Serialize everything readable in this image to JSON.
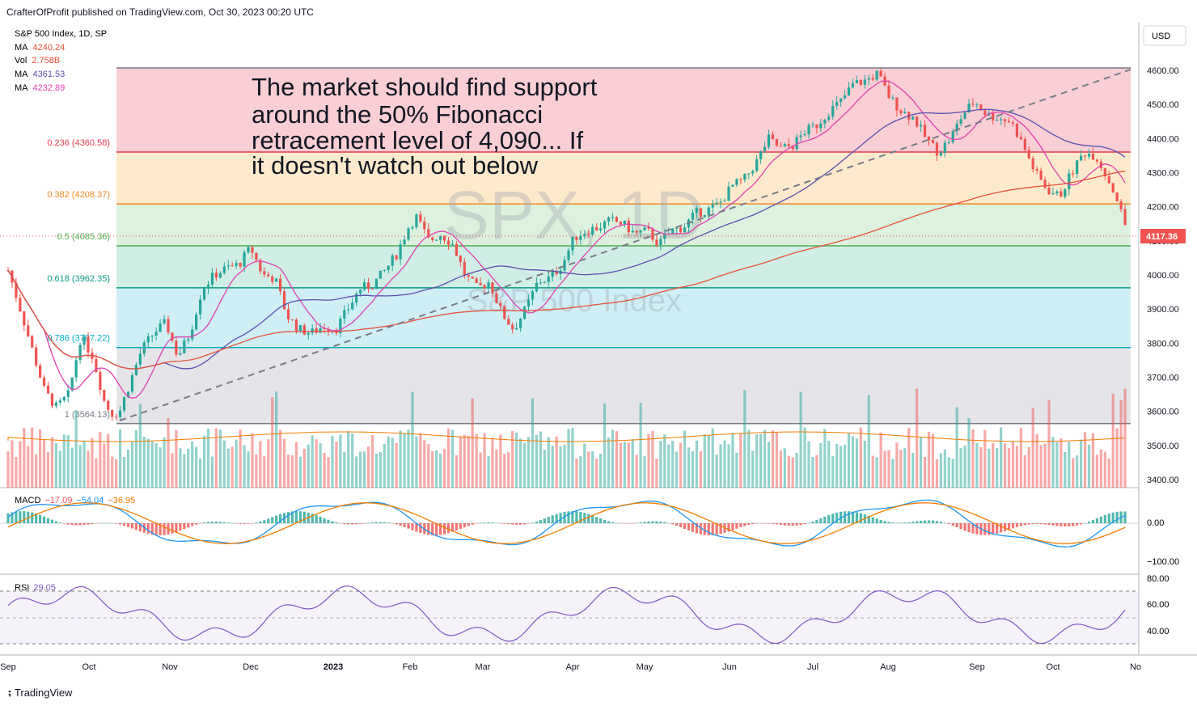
{
  "header": {
    "publisher": "CrafterOfProfit published on TradingView.com, Oct 30, 2023 00:20 UTC"
  },
  "legend": {
    "symbol": "S&P 500 Index, 1D, SP",
    "ma1_label": "MA",
    "ma1_value": "4240.24",
    "vol_label": "Vol",
    "vol_value": "2.758B",
    "ma2_label": "MA",
    "ma2_value": "4361.53",
    "ma3_label": "MA",
    "ma3_value": "4232.89"
  },
  "currency": "USD",
  "watermark": {
    "ticker": "SPX, 1D",
    "name": "S&P 500 Index"
  },
  "annotation": [
    "The market should find support",
    "around the 50% Fibonacci",
    "retracement level of 4,090... If",
    "it doesn't watch out below"
  ],
  "last_price": "4117.36",
  "macd": {
    "label": "MACD",
    "v1": "−17.09",
    "v2": "−54.04",
    "v3": "−36.95",
    "ticks": [
      "0.00",
      "−100.00"
    ]
  },
  "rsi": {
    "label": "RSI",
    "value": "29.05",
    "ticks": [
      "80.00",
      "60.00",
      "40.00"
    ]
  },
  "footer": {
    "brand": "TradingView"
  },
  "colors": {
    "up": "#26a69a",
    "down": "#ef5350",
    "ma_pink": "#e040b0",
    "ma_purple": "#5c4fb0",
    "ma_red": "#e8503a"
  },
  "chart_data": {
    "type": "candlestick",
    "title": "S&P 500 Index, 1D, SP",
    "y_ticks": [
      "4600.00",
      "4500.00",
      "4400.00",
      "4300.00",
      "4200.00",
      "4100.00",
      "4000.00",
      "3900.00",
      "3800.00",
      "3700.00",
      "3600.00",
      "3500.00",
      "3400.00"
    ],
    "ylim": [
      3370,
      4650
    ],
    "x_ticks": [
      "Sep",
      "Oct",
      "Nov",
      "Dec",
      "2023",
      "Feb",
      "Mar",
      "Apr",
      "May",
      "Jun",
      "Jul",
      "Aug",
      "Sep",
      "Oct",
      "No"
    ],
    "fib_levels": [
      {
        "ratio": "0.236",
        "price": 4360.58,
        "label": "0.236 (4360.58)",
        "color": "#e53950"
      },
      {
        "ratio": "0.382",
        "price": 4208.37,
        "label": "0.382 (4208.37)",
        "color": "#f08a24"
      },
      {
        "ratio": "0.5",
        "price": 4085.36,
        "label": "0.5 (4085.36)",
        "color": "#4caf50"
      },
      {
        "ratio": "0.618",
        "price": 3962.35,
        "label": "0.618 (3962.35)",
        "color": "#089981"
      },
      {
        "ratio": "0.786",
        "price": 3787.22,
        "label": "0.786 (3787.22)",
        "color": "#00acc1"
      },
      {
        "ratio": "1",
        "price": 3564.13,
        "label": "1 (3564.13)",
        "color": "#787b86"
      }
    ],
    "fib_top": 4607,
    "close_path": [
      [
        0,
        4080
      ],
      [
        12,
        4000
      ],
      [
        25,
        3900
      ],
      [
        40,
        3780
      ],
      [
        55,
        3660
      ],
      [
        70,
        3610
      ],
      [
        85,
        3650
      ],
      [
        100,
        3820
      ],
      [
        115,
        3760
      ],
      [
        130,
        3620
      ],
      [
        140,
        3590
      ],
      [
        148,
        3600
      ],
      [
        160,
        3680
      ],
      [
        175,
        3780
      ],
      [
        190,
        3830
      ],
      [
        205,
        3860
      ],
      [
        220,
        3760
      ],
      [
        235,
        3830
      ],
      [
        250,
        3960
      ],
      [
        265,
        4000
      ],
      [
        280,
        4020
      ],
      [
        295,
        4030
      ],
      [
        310,
        4080
      ],
      [
        325,
        4000
      ],
      [
        340,
        3990
      ],
      [
        355,
        3880
      ],
      [
        370,
        3840
      ],
      [
        385,
        3830
      ],
      [
        400,
        3850
      ],
      [
        415,
        3840
      ],
      [
        430,
        3900
      ],
      [
        445,
        3960
      ],
      [
        460,
        3970
      ],
      [
        475,
        4010
      ],
      [
        490,
        4060
      ],
      [
        505,
        4140
      ],
      [
        515,
        4170
      ],
      [
        530,
        4100
      ],
      [
        545,
        4120
      ],
      [
        560,
        4090
      ],
      [
        575,
        4000
      ],
      [
        590,
        3960
      ],
      [
        605,
        3980
      ],
      [
        620,
        3890
      ],
      [
        635,
        3840
      ],
      [
        650,
        3900
      ],
      [
        665,
        3980
      ],
      [
        680,
        3990
      ],
      [
        695,
        4030
      ],
      [
        710,
        4110
      ],
      [
        725,
        4130
      ],
      [
        740,
        4140
      ],
      [
        755,
        4160
      ],
      [
        770,
        4150
      ],
      [
        785,
        4120
      ],
      [
        800,
        4130
      ],
      [
        815,
        4090
      ],
      [
        830,
        4130
      ],
      [
        845,
        4140
      ],
      [
        860,
        4180
      ],
      [
        875,
        4190
      ],
      [
        890,
        4210
      ],
      [
        905,
        4260
      ],
      [
        920,
        4280
      ],
      [
        935,
        4330
      ],
      [
        950,
        4400
      ],
      [
        965,
        4370
      ],
      [
        980,
        4380
      ],
      [
        995,
        4420
      ],
      [
        1010,
        4440
      ],
      [
        1025,
        4480
      ],
      [
        1040,
        4510
      ],
      [
        1055,
        4560
      ],
      [
        1070,
        4570
      ],
      [
        1085,
        4590
      ],
      [
        1100,
        4520
      ],
      [
        1115,
        4480
      ],
      [
        1130,
        4460
      ],
      [
        1145,
        4400
      ],
      [
        1160,
        4360
      ],
      [
        1175,
        4400
      ],
      [
        1190,
        4470
      ],
      [
        1205,
        4510
      ],
      [
        1220,
        4470
      ],
      [
        1235,
        4460
      ],
      [
        1250,
        4450
      ],
      [
        1265,
        4380
      ],
      [
        1280,
        4300
      ],
      [
        1295,
        4250
      ],
      [
        1310,
        4230
      ],
      [
        1325,
        4300
      ],
      [
        1340,
        4360
      ],
      [
        1355,
        4350
      ],
      [
        1370,
        4280
      ],
      [
        1380,
        4230
      ],
      [
        1395,
        4117
      ]
    ]
  }
}
